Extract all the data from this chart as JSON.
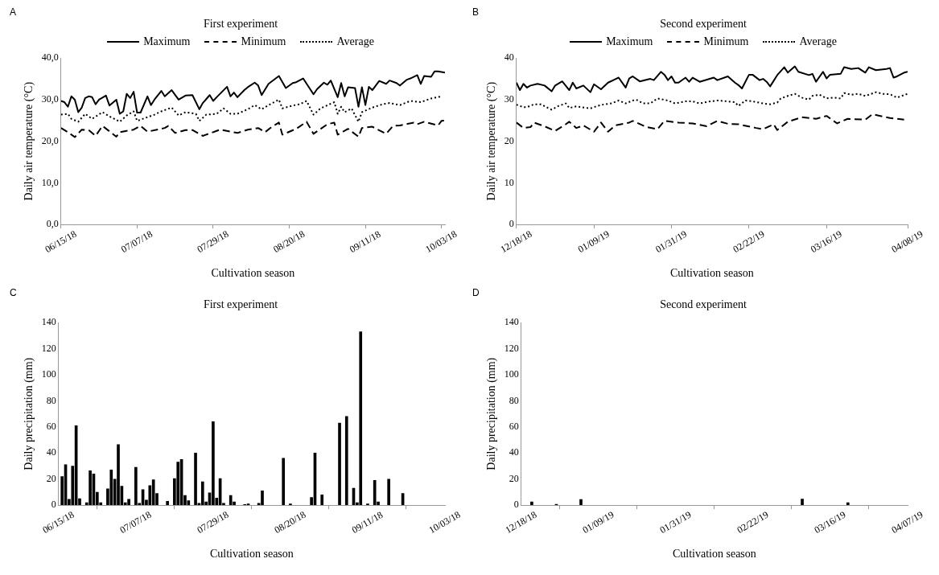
{
  "chart_data": [
    {
      "type": "line",
      "title": "First experiment",
      "xlabel": "Cultivation season",
      "ylabel": "Daily air temperature (°C)",
      "annotations": [
        "A"
      ],
      "legend": "top",
      "marker": "none",
      "xlim": [
        "2018-06-15",
        "2018-10-04"
      ],
      "xticks": [
        {
          "value": "2018-06-15",
          "label": "06/15/18"
        },
        {
          "value": "2018-07-07",
          "label": "07/07/18"
        },
        {
          "value": "2018-07-29",
          "label": "07/29/18"
        },
        {
          "value": "2018-08-20",
          "label": "08/20/18"
        },
        {
          "value": "2018-09-11",
          "label": "09/11/18"
        },
        {
          "value": "2018-10-03",
          "label": "10/03/18"
        }
      ],
      "ylim": [
        0,
        40
      ],
      "yticks": [
        {
          "value": 0,
          "label": "0,0"
        },
        {
          "value": 10,
          "label": "10,0"
        },
        {
          "value": 20,
          "label": "20,0"
        },
        {
          "value": 30,
          "label": "30,0"
        },
        {
          "value": 40,
          "label": "40,0"
        }
      ],
      "series": [
        {
          "name": "Maximum",
          "color": "#000000",
          "line_style": "solid",
          "x": [
            "2018-06-15",
            "2018-06-16",
            "2018-06-17",
            "2018-06-18",
            "2018-06-19",
            "2018-06-20",
            "2018-06-21",
            "2018-06-22",
            "2018-06-23",
            "2018-06-24",
            "2018-06-25",
            "2018-06-26",
            "2018-06-28",
            "2018-06-29",
            "2018-07-01",
            "2018-07-02",
            "2018-07-03",
            "2018-07-04",
            "2018-07-05",
            "2018-07-06",
            "2018-07-07",
            "2018-07-08",
            "2018-07-10",
            "2018-07-11",
            "2018-07-12",
            "2018-07-14",
            "2018-07-15",
            "2018-07-17",
            "2018-07-19",
            "2018-07-21",
            "2018-07-23",
            "2018-07-25",
            "2018-07-26",
            "2018-07-28",
            "2018-07-29",
            "2018-07-30",
            "2018-08-02",
            "2018-08-03",
            "2018-08-04",
            "2018-08-05",
            "2018-08-07",
            "2018-08-08",
            "2018-08-10",
            "2018-08-11",
            "2018-08-12",
            "2018-08-14",
            "2018-08-17",
            "2018-08-19",
            "2018-08-21",
            "2018-08-22",
            "2018-08-24",
            "2018-08-27",
            "2018-08-28",
            "2018-08-30",
            "2018-08-31",
            "2018-09-01",
            "2018-09-03",
            "2018-09-04",
            "2018-09-05",
            "2018-09-06",
            "2018-09-08",
            "2018-09-09",
            "2018-09-10",
            "2018-09-11",
            "2018-09-12",
            "2018-09-13",
            "2018-09-14",
            "2018-09-15",
            "2018-09-17",
            "2018-09-18",
            "2018-09-20",
            "2018-09-21",
            "2018-09-23",
            "2018-09-24",
            "2018-09-26",
            "2018-09-27",
            "2018-09-28",
            "2018-09-30",
            "2018-10-01",
            "2018-10-02",
            "2018-10-04"
          ],
          "values": [
            29.7,
            29.4,
            28.3,
            30.8,
            30.0,
            27.0,
            28.1,
            30.4,
            30.8,
            30.6,
            28.9,
            30.0,
            31.0,
            28.6,
            30.0,
            26.6,
            27.2,
            31.4,
            30.4,
            31.9,
            26.9,
            26.9,
            30.8,
            28.7,
            30.0,
            32.1,
            30.8,
            32.3,
            30.0,
            31.0,
            31.1,
            27.7,
            29.2,
            31.1,
            29.7,
            30.6,
            33.1,
            30.8,
            31.7,
            30.6,
            32.3,
            33.0,
            34.1,
            33.4,
            31.1,
            33.8,
            35.7,
            32.8,
            34.0,
            34.2,
            35.1,
            31.3,
            32.5,
            34.1,
            33.6,
            34.6,
            30.6,
            34.0,
            30.8,
            33.0,
            32.8,
            28.3,
            33.0,
            28.7,
            33.1,
            32.3,
            33.4,
            34.5,
            33.8,
            34.6,
            34.0,
            33.4,
            34.8,
            35.1,
            35.9,
            33.8,
            35.7,
            35.5,
            36.8,
            36.8,
            36.5
          ]
        },
        {
          "name": "Minimum",
          "color": "#000000",
          "line_style": "dashed",
          "x": [
            "2018-06-15",
            "2018-06-17",
            "2018-06-19",
            "2018-06-21",
            "2018-06-23",
            "2018-06-25",
            "2018-06-27",
            "2018-07-01",
            "2018-07-02",
            "2018-07-06",
            "2018-07-08",
            "2018-07-10",
            "2018-07-15",
            "2018-07-16",
            "2018-07-18",
            "2018-07-21",
            "2018-07-23",
            "2018-07-26",
            "2018-07-30",
            "2018-07-31",
            "2018-08-05",
            "2018-08-08",
            "2018-08-11",
            "2018-08-13",
            "2018-08-15",
            "2018-08-17",
            "2018-08-18",
            "2018-08-22",
            "2018-08-25",
            "2018-08-27",
            "2018-08-31",
            "2018-09-02",
            "2018-09-03",
            "2018-09-06",
            "2018-09-09",
            "2018-09-10",
            "2018-09-13",
            "2018-09-17",
            "2018-09-19",
            "2018-09-21",
            "2018-09-25",
            "2018-09-26",
            "2018-09-28",
            "2018-10-02",
            "2018-10-03",
            "2018-10-04"
          ],
          "values": [
            23.2,
            22.2,
            21.0,
            22.8,
            22.7,
            21.3,
            23.7,
            21.1,
            22.2,
            22.8,
            23.7,
            22.3,
            23.2,
            23.7,
            22.0,
            22.7,
            22.7,
            21.3,
            22.5,
            22.8,
            22.0,
            22.8,
            23.2,
            22.2,
            23.5,
            24.5,
            21.6,
            23.0,
            24.7,
            21.8,
            24.1,
            24.5,
            21.6,
            23.0,
            21.1,
            23.2,
            23.5,
            21.8,
            23.7,
            23.8,
            24.5,
            24.1,
            24.7,
            23.8,
            24.9,
            25.0
          ]
        },
        {
          "name": "Average",
          "color": "#000000",
          "line_style": "dotted",
          "x": [
            "2018-06-15",
            "2018-06-17",
            "2018-06-18",
            "2018-06-20",
            "2018-06-22",
            "2018-06-24",
            "2018-06-27",
            "2018-06-29",
            "2018-07-02",
            "2018-07-04",
            "2018-07-06",
            "2018-07-07",
            "2018-07-09",
            "2018-07-12",
            "2018-07-14",
            "2018-07-17",
            "2018-07-19",
            "2018-07-21",
            "2018-07-24",
            "2018-07-25",
            "2018-07-27",
            "2018-07-30",
            "2018-08-01",
            "2018-08-03",
            "2018-08-05",
            "2018-08-08",
            "2018-08-10",
            "2018-08-12",
            "2018-08-14",
            "2018-08-17",
            "2018-08-18",
            "2018-08-21",
            "2018-08-23",
            "2018-08-25",
            "2018-08-27",
            "2018-08-29",
            "2018-09-02",
            "2018-09-03",
            "2018-09-04",
            "2018-09-05",
            "2018-09-07",
            "2018-09-09",
            "2018-09-10",
            "2018-09-13",
            "2018-09-16",
            "2018-09-18",
            "2018-09-21",
            "2018-09-24",
            "2018-09-27",
            "2018-09-30",
            "2018-10-03"
          ],
          "values": [
            26.4,
            26.6,
            25.4,
            24.7,
            26.6,
            25.4,
            27.0,
            26.0,
            24.7,
            26.2,
            27.2,
            24.9,
            25.5,
            26.4,
            27.2,
            28.1,
            26.2,
            27.0,
            26.6,
            24.9,
            26.4,
            26.6,
            27.9,
            26.6,
            26.6,
            27.7,
            28.7,
            27.7,
            28.7,
            30.0,
            27.9,
            28.6,
            28.9,
            29.7,
            26.4,
            27.9,
            29.4,
            26.6,
            28.3,
            27.0,
            27.9,
            24.7,
            27.0,
            28.1,
            28.9,
            29.2,
            28.7,
            29.7,
            29.4,
            30.3,
            30.8
          ]
        }
      ]
    },
    {
      "type": "line",
      "title": "Second experiment",
      "xlabel": "Cultivation season",
      "ylabel": "Daily air temperature (°C)",
      "annotations": [
        "B"
      ],
      "legend": "top",
      "marker": "none",
      "xlim": [
        "2018-12-18",
        "2019-04-08"
      ],
      "xticks": [
        {
          "value": "2018-12-18",
          "label": "12/18/18"
        },
        {
          "value": "2019-01-09",
          "label": "01/09/19"
        },
        {
          "value": "2019-01-31",
          "label": "01/31/19"
        },
        {
          "value": "2019-02-22",
          "label": "02/22/19"
        },
        {
          "value": "2019-03-16",
          "label": "03/16/19"
        },
        {
          "value": "2019-04-08",
          "label": "04/08/19"
        }
      ],
      "ylim": [
        0,
        40
      ],
      "yticks": [
        0,
        10,
        20,
        30,
        40
      ],
      "series": [
        {
          "name": "Maximum",
          "color": "#000000",
          "line_style": "solid",
          "x": [
            "2018-12-18",
            "2018-12-19",
            "2018-12-20",
            "2018-12-21",
            "2018-12-22",
            "2018-12-24",
            "2018-12-26",
            "2018-12-28",
            "2018-12-29",
            "2018-12-31",
            "2019-01-02",
            "2019-01-03",
            "2019-01-04",
            "2019-01-06",
            "2019-01-08",
            "2019-01-09",
            "2019-01-11",
            "2019-01-13",
            "2019-01-16",
            "2019-01-18",
            "2019-01-19",
            "2019-01-20",
            "2019-01-22",
            "2019-01-25",
            "2019-01-26",
            "2019-01-28",
            "2019-01-29",
            "2019-01-30",
            "2019-01-31",
            "2019-02-01",
            "2019-02-02",
            "2019-02-04",
            "2019-02-05",
            "2019-02-06",
            "2019-02-08",
            "2019-02-12",
            "2019-02-13",
            "2019-02-16",
            "2019-02-18",
            "2019-02-19",
            "2019-02-20",
            "2019-02-22",
            "2019-02-23",
            "2019-02-25",
            "2019-02-26",
            "2019-02-27",
            "2019-02-28",
            "2019-03-02",
            "2019-03-04",
            "2019-03-05",
            "2019-03-07",
            "2019-03-08",
            "2019-03-11",
            "2019-03-12",
            "2019-03-13",
            "2019-03-15",
            "2019-03-16",
            "2019-03-17",
            "2019-03-20",
            "2019-03-21",
            "2019-03-23",
            "2019-03-25",
            "2019-03-27",
            "2019-03-28",
            "2019-03-30",
            "2019-04-02",
            "2019-04-03",
            "2019-04-04",
            "2019-04-05",
            "2019-04-07",
            "2019-04-08"
          ],
          "values": [
            34.1,
            32.3,
            33.8,
            32.9,
            33.4,
            33.8,
            33.4,
            32.0,
            33.4,
            34.4,
            32.3,
            34.1,
            32.7,
            33.4,
            31.8,
            33.7,
            32.5,
            34.1,
            35.3,
            32.9,
            35.1,
            35.6,
            34.4,
            35.0,
            34.7,
            36.7,
            36.0,
            34.7,
            35.6,
            34.1,
            34.1,
            35.3,
            34.3,
            35.3,
            34.3,
            35.3,
            34.7,
            35.6,
            34.1,
            33.5,
            32.7,
            36.0,
            36.0,
            34.7,
            35.0,
            34.3,
            33.2,
            35.9,
            37.8,
            36.5,
            38.0,
            36.7,
            35.9,
            36.2,
            34.3,
            36.7,
            35.1,
            36.0,
            36.2,
            37.8,
            37.4,
            37.6,
            36.5,
            37.8,
            37.1,
            37.4,
            37.6,
            35.3,
            35.6,
            36.5,
            36.7
          ]
        },
        {
          "name": "Minimum",
          "color": "#000000",
          "line_style": "dashed",
          "x": [
            "2018-12-18",
            "2018-12-20",
            "2018-12-22",
            "2018-12-23",
            "2018-12-26",
            "2018-12-29",
            "2019-01-01",
            "2019-01-02",
            "2019-01-04",
            "2019-01-06",
            "2019-01-09",
            "2019-01-11",
            "2019-01-13",
            "2019-01-15",
            "2019-01-19",
            "2019-01-20",
            "2019-01-24",
            "2019-01-27",
            "2019-01-29",
            "2019-02-02",
            "2019-02-06",
            "2019-02-10",
            "2019-02-13",
            "2019-02-16",
            "2019-02-19",
            "2019-02-24",
            "2019-02-26",
            "2019-03-01",
            "2019-03-02",
            "2019-03-05",
            "2019-03-09",
            "2019-03-13",
            "2019-03-16",
            "2019-03-19",
            "2019-03-22",
            "2019-03-27",
            "2019-03-29",
            "2019-04-03",
            "2019-04-07"
          ],
          "values": [
            24.5,
            23.2,
            23.4,
            24.5,
            23.6,
            22.5,
            24.1,
            24.7,
            23.2,
            23.8,
            22.3,
            24.5,
            22.3,
            23.8,
            24.5,
            24.9,
            23.4,
            22.9,
            24.9,
            24.5,
            24.3,
            23.6,
            24.9,
            24.2,
            24.1,
            23.2,
            22.9,
            24.1,
            22.7,
            24.7,
            25.8,
            25.4,
            26.1,
            24.3,
            25.4,
            25.2,
            26.5,
            25.6,
            25.2
          ]
        },
        {
          "name": "Average",
          "color": "#000000",
          "line_style": "dotted",
          "x": [
            "2018-12-18",
            "2018-12-20",
            "2018-12-21",
            "2018-12-23",
            "2018-12-25",
            "2018-12-27",
            "2018-12-28",
            "2018-12-30",
            "2019-01-01",
            "2019-01-02",
            "2019-01-04",
            "2019-01-08",
            "2019-01-10",
            "2019-01-12",
            "2019-01-14",
            "2019-01-16",
            "2019-01-18",
            "2019-01-20",
            "2019-01-21",
            "2019-01-23",
            "2019-01-25",
            "2019-01-27",
            "2019-01-30",
            "2019-02-01",
            "2019-02-04",
            "2019-02-06",
            "2019-02-08",
            "2019-02-11",
            "2019-02-13",
            "2019-02-16",
            "2019-02-18",
            "2019-02-19",
            "2019-02-21",
            "2019-02-23",
            "2019-02-26",
            "2019-02-28",
            "2019-03-02",
            "2019-03-03",
            "2019-03-05",
            "2019-03-07",
            "2019-03-09",
            "2019-03-11",
            "2019-03-12",
            "2019-03-14",
            "2019-03-16",
            "2019-03-18",
            "2019-03-20",
            "2019-03-21",
            "2019-03-23",
            "2019-03-25",
            "2019-03-27",
            "2019-03-30",
            "2019-04-01",
            "2019-04-03",
            "2019-04-05",
            "2019-04-08"
          ],
          "values": [
            28.8,
            28.2,
            28.2,
            28.9,
            28.9,
            28.0,
            27.6,
            28.5,
            29.1,
            28.0,
            28.4,
            27.9,
            28.5,
            28.9,
            29.1,
            29.8,
            29.1,
            29.8,
            30.0,
            29.1,
            29.1,
            30.3,
            29.8,
            29.1,
            29.6,
            29.6,
            29.1,
            29.6,
            29.8,
            29.6,
            29.4,
            28.5,
            29.8,
            29.6,
            29.1,
            28.9,
            29.3,
            30.3,
            30.9,
            31.4,
            30.5,
            30.0,
            30.9,
            31.2,
            30.3,
            30.5,
            30.3,
            31.6,
            31.2,
            31.4,
            30.9,
            31.8,
            31.4,
            31.3,
            30.5,
            31.4
          ]
        }
      ]
    },
    {
      "type": "bar",
      "title": "First experiment",
      "xlabel": "Cultivation season",
      "ylabel": "Daily precipitation (mm)",
      "annotations": [
        "C"
      ],
      "color": "#000000",
      "xlim": [
        "2018-06-15",
        "2018-10-03"
      ],
      "xticks": [
        {
          "value": "2018-06-15",
          "label": "06/15/18"
        },
        {
          "value": "2018-07-07",
          "label": "07/07/18"
        },
        {
          "value": "2018-07-29",
          "label": "07/29/18"
        },
        {
          "value": "2018-08-20",
          "label": "08/20/18"
        },
        {
          "value": "2018-09-11",
          "label": "09/11/18"
        },
        {
          "value": "2018-10-03",
          "label": "10/03/18"
        }
      ],
      "ylim": [
        0,
        140
      ],
      "yticks": [
        0,
        20,
        40,
        60,
        80,
        100,
        120,
        140
      ],
      "x": [
        "2018-06-16",
        "2018-06-17",
        "2018-06-18",
        "2018-06-19",
        "2018-06-20",
        "2018-06-21",
        "2018-06-23",
        "2018-06-24",
        "2018-06-25",
        "2018-06-26",
        "2018-06-27",
        "2018-06-29",
        "2018-06-30",
        "2018-07-01",
        "2018-07-02",
        "2018-07-03",
        "2018-07-04",
        "2018-07-05",
        "2018-07-07",
        "2018-07-08",
        "2018-07-09",
        "2018-07-10",
        "2018-07-11",
        "2018-07-12",
        "2018-07-13",
        "2018-07-16",
        "2018-07-18",
        "2018-07-19",
        "2018-07-20",
        "2018-07-21",
        "2018-07-22",
        "2018-07-24",
        "2018-07-25",
        "2018-07-26",
        "2018-07-27",
        "2018-07-28",
        "2018-07-29",
        "2018-07-30",
        "2018-07-31",
        "2018-08-01",
        "2018-08-03",
        "2018-08-04",
        "2018-08-07",
        "2018-08-08",
        "2018-08-11",
        "2018-08-12",
        "2018-08-18",
        "2018-08-20",
        "2018-08-26",
        "2018-08-27",
        "2018-08-29",
        "2018-09-03",
        "2018-09-05",
        "2018-09-07",
        "2018-09-08",
        "2018-09-09",
        "2018-09-11",
        "2018-09-13",
        "2018-09-14",
        "2018-09-17",
        "2018-09-21"
      ],
      "values": [
        22,
        31,
        4.5,
        30,
        61,
        5,
        2,
        26.5,
        24,
        10,
        2,
        12.5,
        27,
        20,
        46.5,
        14.5,
        2,
        4.5,
        29,
        1.5,
        12,
        4,
        15,
        19.5,
        9,
        3,
        20.5,
        33,
        35,
        7.5,
        3.5,
        40,
        1.5,
        18,
        2.5,
        9.5,
        64,
        5.5,
        20.5,
        1.5,
        7.5,
        2.5,
        0.5,
        1,
        1.5,
        11,
        36,
        1,
        6,
        40,
        8,
        63,
        68,
        13,
        2,
        133,
        1,
        19,
        2.5,
        20,
        9
      ]
    },
    {
      "type": "bar",
      "title": "Second experiment",
      "xlabel": "Cultivation season",
      "ylabel": "Daily precipitation (mm)",
      "annotations": [
        "D"
      ],
      "color": "#000000",
      "xlim": [
        "2018-12-18",
        "2019-04-07"
      ],
      "xticks": [
        {
          "value": "2018-12-18",
          "label": "12/18/18"
        },
        {
          "value": "2019-01-09",
          "label": "01/09/19"
        },
        {
          "value": "2019-01-31",
          "label": "01/31/19"
        },
        {
          "value": "2019-02-22",
          "label": "02/22/19"
        },
        {
          "value": "2019-03-16",
          "label": "03/16/19"
        },
        {
          "value": "2019-04-07",
          "label": "04/07/19"
        }
      ],
      "ylim": [
        0,
        140
      ],
      "yticks": [
        0,
        20,
        40,
        60,
        80,
        100,
        120,
        140
      ],
      "x": [
        "2018-12-21",
        "2018-12-28",
        "2019-01-04",
        "2019-03-08",
        "2019-03-21"
      ],
      "values": [
        2.5,
        0.7,
        4.4,
        4.7,
        2
      ]
    }
  ]
}
